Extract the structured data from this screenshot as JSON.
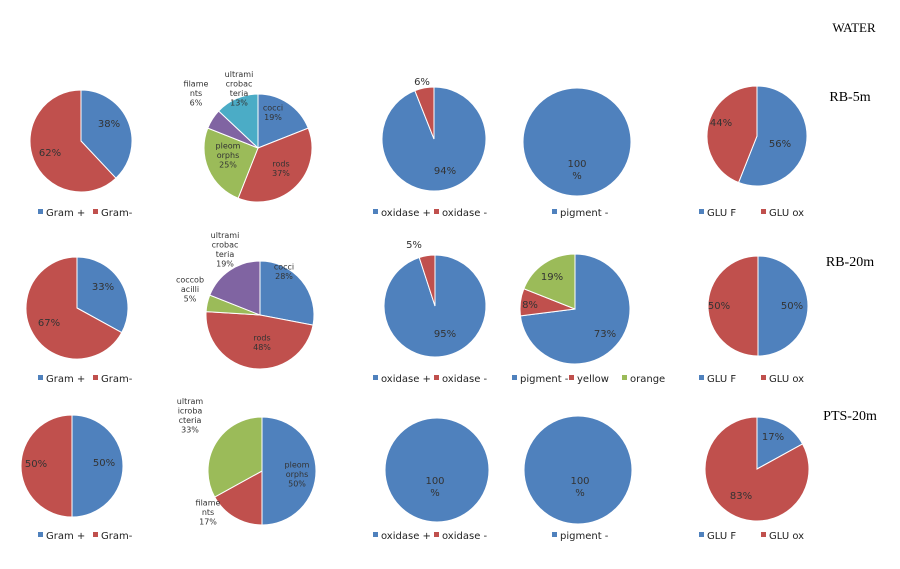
{
  "page": {
    "heading": "WATER",
    "rows": [
      {
        "label": "RB-5m"
      },
      {
        "label": "RB-20m"
      },
      {
        "label": "PTS-20m"
      }
    ]
  },
  "colors": {
    "blue": "#4F81BD",
    "red": "#C0504D",
    "green": "#9BBB59",
    "purple": "#8064A2",
    "teal": "#4BACC6"
  },
  "chart_data": [
    {
      "type": "pie",
      "row": "RB-5m",
      "col": 1,
      "slices": [
        {
          "label": "Gram +",
          "value": 38,
          "text": "38%",
          "color": "blue"
        },
        {
          "label": "Gram-",
          "value": 62,
          "text": "62%",
          "color": "red"
        }
      ],
      "legend": [
        "Gram +",
        "Gram-"
      ]
    },
    {
      "type": "pie",
      "row": "RB-5m",
      "col": 2,
      "slices": [
        {
          "label": "cocci",
          "value": 19,
          "text": [
            "cocci",
            "19%"
          ],
          "color": "blue"
        },
        {
          "label": "rods",
          "value": 37,
          "text": [
            "rods",
            "37%"
          ],
          "color": "red"
        },
        {
          "label": "pleomorphs",
          "value": 25,
          "text": [
            "pleom",
            "orphs",
            "25%"
          ],
          "color": "green"
        },
        {
          "label": "filaments",
          "value": 6,
          "text": [
            "filame",
            "nts",
            "6%"
          ],
          "color": "purple",
          "outside": true
        },
        {
          "label": "ultramicrobacteria",
          "value": 13,
          "text": [
            "ultrami",
            "crobac",
            "teria",
            "13%"
          ],
          "color": "teal"
        }
      ],
      "legend": []
    },
    {
      "type": "pie",
      "row": "RB-5m",
      "col": 3,
      "slices": [
        {
          "label": "oxidase +",
          "value": 94,
          "text": "94%",
          "color": "blue"
        },
        {
          "label": "oxidase -",
          "value": 6,
          "text": "6%",
          "color": "red",
          "outside": true
        }
      ],
      "legend": [
        "oxidase +",
        "oxidase -"
      ]
    },
    {
      "type": "pie",
      "row": "RB-5m",
      "col": 4,
      "slices": [
        {
          "label": "pigment -",
          "value": 100,
          "text": [
            "100",
            "%"
          ],
          "color": "blue"
        }
      ],
      "legend": [
        "pigment -"
      ]
    },
    {
      "type": "pie",
      "row": "RB-5m",
      "col": 5,
      "slices": [
        {
          "label": "GLU F",
          "value": 56,
          "text": "56%",
          "color": "blue"
        },
        {
          "label": "GLU ox",
          "value": 44,
          "text": "44%",
          "color": "red"
        }
      ],
      "legend": [
        "GLU F",
        "GLU ox"
      ]
    },
    {
      "type": "pie",
      "row": "RB-20m",
      "col": 1,
      "slices": [
        {
          "label": "Gram +",
          "value": 33,
          "text": "33%",
          "color": "blue"
        },
        {
          "label": "Gram-",
          "value": 67,
          "text": "67%",
          "color": "red"
        }
      ],
      "legend": [
        "Gram +",
        "Gram-"
      ]
    },
    {
      "type": "pie",
      "row": "RB-20m",
      "col": 2,
      "slices": [
        {
          "label": "cocci",
          "value": 28,
          "text": [
            "cocci",
            "28%"
          ],
          "color": "blue"
        },
        {
          "label": "rods",
          "value": 48,
          "text": [
            "rods",
            "48%"
          ],
          "color": "red"
        },
        {
          "label": "coccobacilli",
          "value": 5,
          "text": [
            "coccob",
            "acilli",
            "5%"
          ],
          "color": "green",
          "outside": true
        },
        {
          "label": "ultramicrobacteria",
          "value": 19,
          "text": [
            "ultrami",
            "crobac",
            "teria",
            "19%"
          ],
          "color": "purple"
        }
      ],
      "legend": []
    },
    {
      "type": "pie",
      "row": "RB-20m",
      "col": 3,
      "slices": [
        {
          "label": "oxidase +",
          "value": 95,
          "text": "95%",
          "color": "blue"
        },
        {
          "label": "oxidase -",
          "value": 5,
          "text": "5%",
          "color": "red",
          "outside": true
        }
      ],
      "legend": [
        "oxidase +",
        "oxidase -"
      ]
    },
    {
      "type": "pie",
      "row": "RB-20m",
      "col": 4,
      "slices": [
        {
          "label": "pigment -",
          "value": 73,
          "text": "73%",
          "color": "blue"
        },
        {
          "label": "yellow",
          "value": 8,
          "text": "8%",
          "color": "red"
        },
        {
          "label": "orange",
          "value": 19,
          "text": "19%",
          "color": "green"
        }
      ],
      "legend": [
        "pigment -",
        "yellow",
        "orange"
      ]
    },
    {
      "type": "pie",
      "row": "RB-20m",
      "col": 5,
      "slices": [
        {
          "label": "GLU F",
          "value": 50,
          "text": "50%",
          "color": "blue"
        },
        {
          "label": "GLU ox",
          "value": 50,
          "text": "50%",
          "color": "red"
        }
      ],
      "legend": [
        "GLU F",
        "GLU ox"
      ]
    },
    {
      "type": "pie",
      "row": "PTS-20m",
      "col": 1,
      "slices": [
        {
          "label": "Gram +",
          "value": 50,
          "text": "50%",
          "color": "blue"
        },
        {
          "label": "Gram-",
          "value": 50,
          "text": "50%",
          "color": "red"
        }
      ],
      "legend": [
        "Gram +",
        "Gram-"
      ]
    },
    {
      "type": "pie",
      "row": "PTS-20m",
      "col": 2,
      "slices": [
        {
          "label": "pleomorphs",
          "value": 50,
          "text": [
            "pleom",
            "orphs",
            "50%"
          ],
          "color": "blue"
        },
        {
          "label": "filaments",
          "value": 17,
          "text": [
            "filame",
            "nts",
            "17%"
          ],
          "color": "red",
          "outside": true
        },
        {
          "label": "ultramicrobacteria",
          "value": 33,
          "text": [
            "ultram",
            "icroba",
            "cteria",
            "33%"
          ],
          "color": "green",
          "outside": true
        }
      ],
      "legend": []
    },
    {
      "type": "pie",
      "row": "PTS-20m",
      "col": 3,
      "slices": [
        {
          "label": "oxidase +",
          "value": 100,
          "text": [
            "100",
            "%"
          ],
          "color": "blue"
        }
      ],
      "legend": [
        "oxidase +",
        "oxidase -"
      ]
    },
    {
      "type": "pie",
      "row": "PTS-20m",
      "col": 4,
      "slices": [
        {
          "label": "pigment -",
          "value": 100,
          "text": [
            "100",
            "%"
          ],
          "color": "blue"
        }
      ],
      "legend": [
        "pigment -"
      ]
    },
    {
      "type": "pie",
      "row": "PTS-20m",
      "col": 5,
      "slices": [
        {
          "label": "GLU F",
          "value": 17,
          "text": "17%",
          "color": "blue"
        },
        {
          "label": "GLU ox",
          "value": 83,
          "text": "83%",
          "color": "red"
        }
      ],
      "legend": [
        "GLU F",
        "GLU ox"
      ]
    }
  ]
}
